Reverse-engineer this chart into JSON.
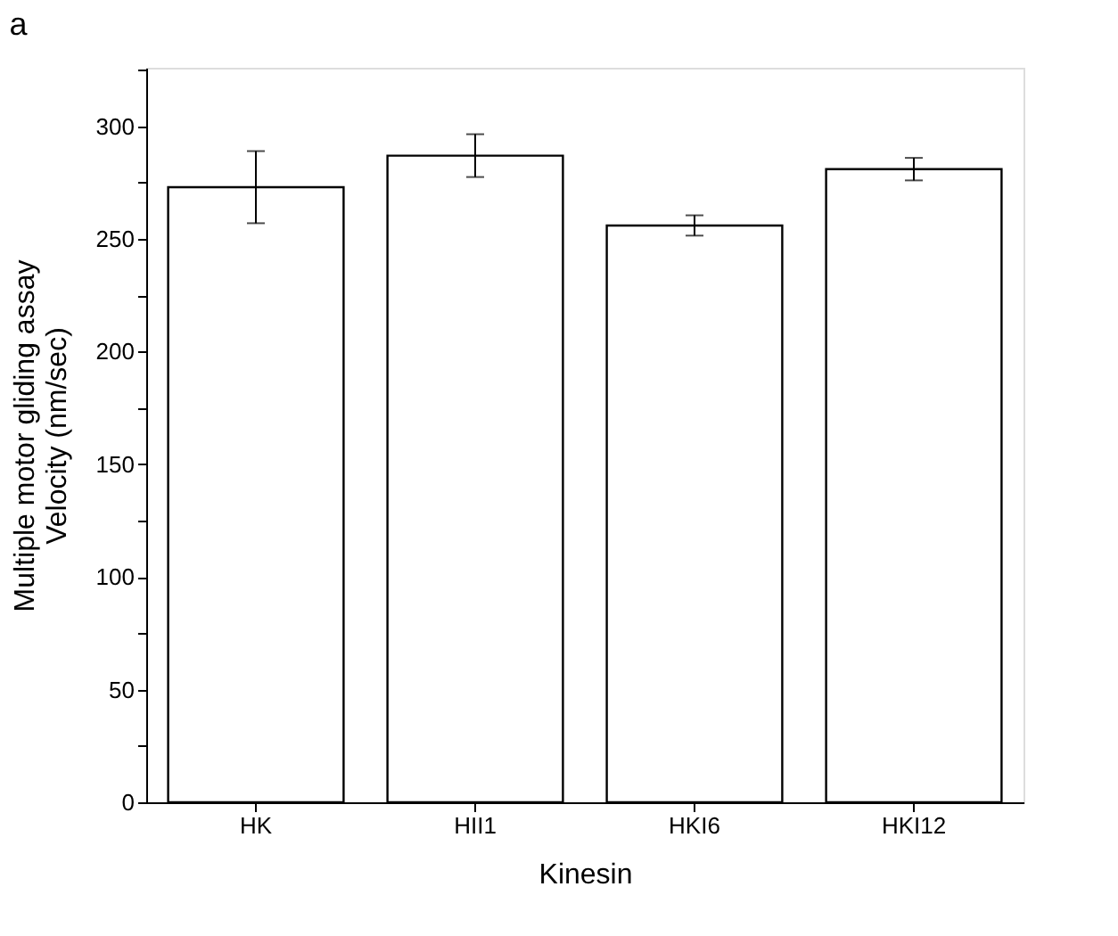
{
  "chart_data": {
    "type": "bar",
    "categories": [
      "HK",
      "HII1",
      "HKI6",
      "HKI12"
    ],
    "values": [
      273,
      287,
      256,
      281
    ],
    "errors": [
      16,
      9.5,
      4.5,
      5
    ],
    "color": "#ffffff",
    "xlabel": "Kinesin",
    "ylabel": "Multiple motor gliding assay\nVelocity (nm/sec)",
    "ylim": [
      0,
      326
    ],
    "yticks": [
      0,
      {
        "value": 25,
        "label": null
      },
      50,
      {
        "value": 75,
        "label": null
      },
      100,
      {
        "value": 125,
        "label": null
      },
      150,
      {
        "value": 175,
        "label": null
      },
      200,
      {
        "value": 225,
        "label": null
      },
      250,
      {
        "value": 275,
        "label": null
      },
      300,
      {
        "value": 325,
        "label": null
      }
    ],
    "annotations": [
      "a"
    ],
    "grid": false
  }
}
